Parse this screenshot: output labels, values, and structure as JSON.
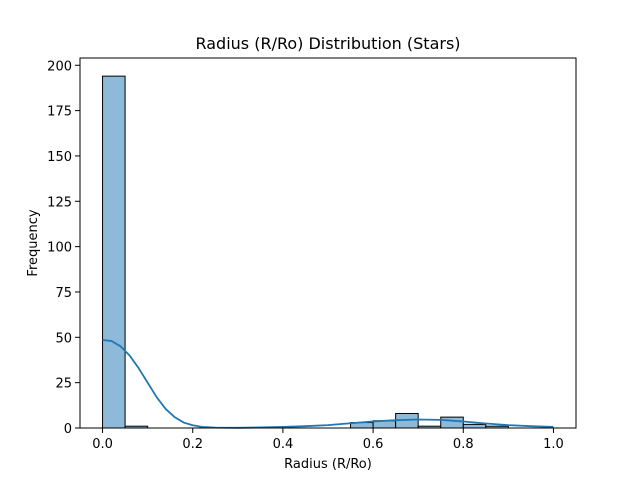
{
  "chart_data": {
    "type": "bar",
    "title": "Radius (R/Ro) Distribution (Stars)",
    "xlabel": "Radius (R/Ro)",
    "ylabel": "Frequency",
    "xlim": [
      -0.05,
      1.05
    ],
    "ylim": [
      0,
      204
    ],
    "grid": false,
    "bin_edges": [
      0.0,
      0.05,
      0.1,
      0.15,
      0.2,
      0.25,
      0.3,
      0.35,
      0.4,
      0.45,
      0.5,
      0.55,
      0.6,
      0.65,
      0.7,
      0.75,
      0.8,
      0.85,
      0.9,
      0.95,
      1.0
    ],
    "values": [
      194,
      1,
      0,
      0,
      0,
      0,
      0,
      0,
      0,
      0,
      0,
      3,
      4,
      8,
      1,
      6,
      2,
      1,
      0,
      0
    ],
    "kde": {
      "x": [
        0.0,
        0.02,
        0.04,
        0.06,
        0.08,
        0.1,
        0.12,
        0.14,
        0.16,
        0.18,
        0.2,
        0.22,
        0.25,
        0.3,
        0.35,
        0.4,
        0.45,
        0.5,
        0.55,
        0.6,
        0.65,
        0.7,
        0.75,
        0.8,
        0.85,
        0.9,
        0.95,
        1.0
      ],
      "y": [
        48.5,
        48,
        45,
        40,
        33,
        25,
        17,
        10.5,
        6,
        3,
        1.5,
        0.6,
        0.2,
        0.1,
        0.3,
        0.6,
        1.0,
        1.6,
        2.6,
        3.6,
        4.3,
        4.7,
        4.5,
        3.6,
        2.5,
        1.6,
        1.0,
        0.6
      ]
    },
    "xticks": [
      0.0,
      0.2,
      0.4,
      0.6,
      0.8,
      1.0
    ],
    "xtick_labels": [
      "0.0",
      "0.2",
      "0.4",
      "0.6",
      "0.8",
      "1.0"
    ],
    "yticks": [
      0,
      25,
      50,
      75,
      100,
      125,
      150,
      175,
      200
    ],
    "ytick_labels": [
      "0",
      "25",
      "50",
      "75",
      "100",
      "125",
      "150",
      "175",
      "200"
    ],
    "colors": {
      "bar_fill": "#8ebad9",
      "bar_edge": "#000000",
      "kde_line": "#1f77b4"
    }
  }
}
